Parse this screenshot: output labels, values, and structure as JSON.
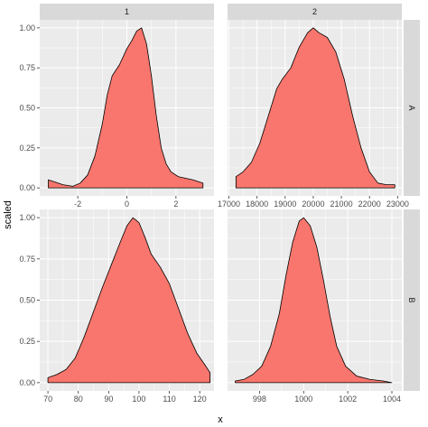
{
  "chart_data": {
    "type": "area",
    "facet_type": "grid",
    "xlabel": "x",
    "ylabel": "scaled",
    "col_strips": [
      "1",
      "2"
    ],
    "row_strips": [
      "A",
      "B"
    ],
    "y_range": [
      -0.05,
      1.05
    ],
    "y_ticks": [
      0,
      0.25,
      0.5,
      0.75,
      1
    ],
    "y_tick_labels": [
      "0.00",
      "0.25",
      "0.50",
      "0.75",
      "1.00"
    ],
    "grid": true,
    "fill_color": "#F8766D",
    "outline_color": "#000000",
    "panel_bg": "#EBEBEB",
    "strip_bg": "#D9D9D9",
    "panels": [
      {
        "row": "A",
        "col": "1",
        "x_range": [
          -3.55,
          3.55
        ],
        "x_ticks": [
          -2,
          0,
          2
        ],
        "x_tick_labels": [
          "-2",
          "0",
          "2"
        ],
        "points": [
          [
            -3.2,
            0.05
          ],
          [
            -3.0,
            0.04
          ],
          [
            -2.6,
            0.02
          ],
          [
            -2.2,
            0.01
          ],
          [
            -1.9,
            0.03
          ],
          [
            -1.6,
            0.08
          ],
          [
            -1.3,
            0.2
          ],
          [
            -1.0,
            0.4
          ],
          [
            -0.8,
            0.58
          ],
          [
            -0.6,
            0.7
          ],
          [
            -0.3,
            0.77
          ],
          [
            0,
            0.87
          ],
          [
            0.2,
            0.92
          ],
          [
            0.4,
            0.98
          ],
          [
            0.6,
            1.0
          ],
          [
            0.8,
            0.9
          ],
          [
            1.0,
            0.7
          ],
          [
            1.2,
            0.45
          ],
          [
            1.4,
            0.25
          ],
          [
            1.6,
            0.15
          ],
          [
            1.8,
            0.1
          ],
          [
            2.1,
            0.07
          ],
          [
            2.4,
            0.06
          ],
          [
            2.7,
            0.05
          ],
          [
            3.1,
            0.03
          ]
        ]
      },
      {
        "row": "A",
        "col": "2",
        "x_range": [
          16950,
          23150
        ],
        "x_ticks": [
          17000,
          18000,
          19000,
          20000,
          21000,
          22000,
          23000
        ],
        "x_tick_labels": [
          "17000",
          "18000",
          "19000",
          "20000",
          "21000",
          "22000",
          "23000"
        ],
        "points": [
          [
            17250,
            0.07
          ],
          [
            17500,
            0.1
          ],
          [
            17800,
            0.16
          ],
          [
            18100,
            0.28
          ],
          [
            18400,
            0.45
          ],
          [
            18700,
            0.62
          ],
          [
            18900,
            0.68
          ],
          [
            19200,
            0.75
          ],
          [
            19500,
            0.88
          ],
          [
            19800,
            0.97
          ],
          [
            20000,
            1.0
          ],
          [
            20200,
            0.97
          ],
          [
            20500,
            0.94
          ],
          [
            20800,
            0.85
          ],
          [
            21100,
            0.68
          ],
          [
            21400,
            0.45
          ],
          [
            21700,
            0.25
          ],
          [
            22000,
            0.1
          ],
          [
            22300,
            0.03
          ],
          [
            22600,
            0.02
          ],
          [
            22900,
            0.02
          ]
        ]
      },
      {
        "row": "B",
        "col": "1",
        "x_range": [
          67.3,
          124.7
        ],
        "x_ticks": [
          70,
          80,
          90,
          100,
          110,
          120
        ],
        "x_tick_labels": [
          "70",
          "80",
          "90",
          "100",
          "110",
          "120"
        ],
        "points": [
          [
            70,
            0.03
          ],
          [
            73,
            0.05
          ],
          [
            76,
            0.08
          ],
          [
            79,
            0.15
          ],
          [
            82,
            0.28
          ],
          [
            85,
            0.43
          ],
          [
            88,
            0.58
          ],
          [
            91,
            0.72
          ],
          [
            94,
            0.86
          ],
          [
            96,
            0.95
          ],
          [
            98,
            1.0
          ],
          [
            100,
            0.97
          ],
          [
            102,
            0.88
          ],
          [
            104,
            0.78
          ],
          [
            107,
            0.7
          ],
          [
            110,
            0.6
          ],
          [
            113,
            0.45
          ],
          [
            116,
            0.3
          ],
          [
            119,
            0.18
          ],
          [
            122,
            0.1
          ],
          [
            123.4,
            0.06
          ]
        ]
      },
      {
        "row": "B",
        "col": "2",
        "x_range": [
          996.55,
          1004.45
        ],
        "x_ticks": [
          998,
          1000,
          1002,
          1004
        ],
        "x_tick_labels": [
          "998",
          "1000",
          "1002",
          "1004"
        ],
        "points": [
          [
            996.9,
            0.01
          ],
          [
            997.3,
            0.02
          ],
          [
            997.7,
            0.05
          ],
          [
            998.1,
            0.1
          ],
          [
            998.5,
            0.22
          ],
          [
            998.9,
            0.42
          ],
          [
            999.2,
            0.65
          ],
          [
            999.5,
            0.85
          ],
          [
            999.8,
            0.98
          ],
          [
            1000.0,
            1.0
          ],
          [
            1000.3,
            0.95
          ],
          [
            1000.6,
            0.82
          ],
          [
            1000.9,
            0.62
          ],
          [
            1001.2,
            0.4
          ],
          [
            1001.5,
            0.22
          ],
          [
            1001.9,
            0.1
          ],
          [
            1002.4,
            0.04
          ],
          [
            1003.0,
            0.02
          ],
          [
            1003.6,
            0.01
          ],
          [
            1004.0,
            0.0
          ]
        ]
      }
    ]
  }
}
